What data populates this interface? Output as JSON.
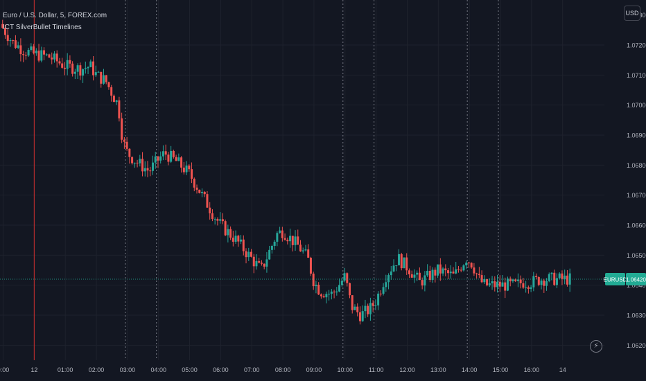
{
  "header": {
    "symbol_line": "Euro / U.S. Dollar, 5, FOREX.com",
    "indicator_line": "ICT SilverBullet Timelines"
  },
  "currency_button": "USD",
  "bolt_icon": "lightning-bolt-icon",
  "colors": {
    "background": "#131722",
    "grid": "#1e222d",
    "up": "#26a69a",
    "down": "#ef5350",
    "session_line": "#d32f2f",
    "timeline": "#787b86",
    "price_label": "#22ab94"
  },
  "chart_data": {
    "type": "candlestick",
    "symbol": "EURUSD",
    "interval": "5",
    "ylim": [
      1.0615,
      1.0735
    ],
    "y_ticks": [
      "1.07200",
      "1.07100",
      "1.07000",
      "1.06900",
      "1.06800",
      "1.06700",
      "1.06600",
      "1.06500",
      "1.06400",
      "1.06300",
      "1.06200"
    ],
    "y_tick_partial": "1.07300",
    "x_ticks": [
      "0:00",
      "12",
      "01:00",
      "02:00",
      "03:00",
      "04:00",
      "05:00",
      "06:00",
      "07:00",
      "08:00",
      "09:00",
      "10:00",
      "11:00",
      "12:00",
      "13:00",
      "14:00",
      "15:00",
      "16:00",
      "14"
    ],
    "x_tick_hours": [
      0,
      1,
      2,
      3,
      4,
      5,
      6,
      7,
      8,
      9,
      10,
      11,
      12,
      13,
      14,
      15,
      16,
      17,
      18
    ],
    "x_range_hours": [
      -0.1,
      19.3
    ],
    "session_line_hour": 1,
    "timeline_hours": [
      4,
      5,
      11,
      12,
      15,
      16
    ],
    "last_price": 1.0642,
    "last_price_label": "1.06420",
    "symbol_label": "EURUSD",
    "grid": true,
    "close_path_hours": [
      -0.1,
      0.3,
      0.7,
      1.0,
      1.5,
      2.0,
      2.5,
      2.8,
      3.0,
      3.3,
      3.7,
      3.85,
      4.0,
      4.3,
      4.7,
      5.0,
      5.2,
      5.6,
      6.0,
      6.4,
      6.8,
      7.0,
      7.5,
      7.9,
      8.3,
      8.6,
      8.8,
      9.0,
      9.5,
      9.8,
      10.0,
      10.2,
      10.6,
      11.0,
      11.2,
      11.5,
      11.8,
      12.0,
      12.3,
      12.7,
      13.1,
      13.4,
      13.7,
      14.0,
      14.5,
      14.9,
      15.1,
      15.3,
      15.5,
      15.8,
      16.1,
      16.5,
      16.7,
      17.0,
      17.3,
      17.6,
      17.9,
      18.1,
      18.3
    ],
    "close_path_prices": [
      1.0727,
      1.0721,
      1.0718,
      1.0717,
      1.0716,
      1.0713,
      1.0712,
      1.0713,
      1.071,
      1.0708,
      1.07,
      1.0688,
      1.0684,
      1.0681,
      1.0678,
      1.0682,
      1.0684,
      1.0681,
      1.0677,
      1.067,
      1.0663,
      1.066,
      1.0655,
      1.065,
      1.0645,
      1.0652,
      1.0657,
      1.0658,
      1.0653,
      1.0649,
      1.0641,
      1.0638,
      1.0637,
      1.0643,
      1.0633,
      1.063,
      1.0632,
      1.0635,
      1.0643,
      1.0649,
      1.0645,
      1.0641,
      1.0643,
      1.0645,
      1.0643,
      1.0649,
      1.0647,
      1.0642,
      1.064,
      1.064,
      1.064,
      1.064,
      1.0641,
      1.0641,
      1.0642,
      1.0642,
      1.0642,
      1.0642,
      1.0642
    ]
  }
}
